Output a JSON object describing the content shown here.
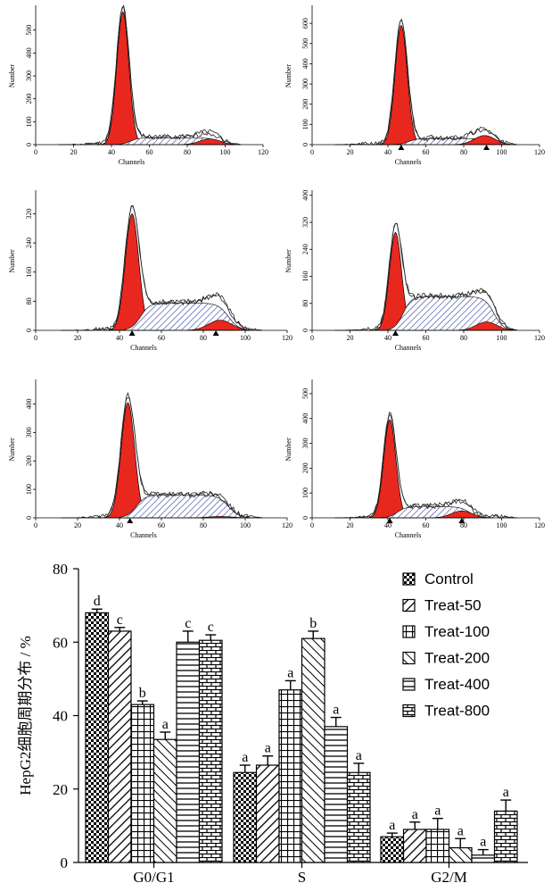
{
  "chart_data": [
    {
      "type": "area",
      "panel": "histogram-1",
      "xlabel": "Channels",
      "ylabel": "Number",
      "xlim": [
        0,
        120
      ],
      "ylim": [
        0,
        600
      ],
      "x_ticks": [
        0,
        20,
        40,
        60,
        80,
        100,
        120
      ],
      "y_ticks": [
        0,
        100,
        200,
        300,
        400,
        500
      ],
      "g1_peak": {
        "x": 46,
        "height": 580
      },
      "g2_peak": {
        "x": 92,
        "height": 25
      },
      "s_level": 30,
      "markers": []
    },
    {
      "type": "area",
      "panel": "histogram-2",
      "xlabel": "Channels",
      "ylabel": "Number",
      "xlim": [
        0,
        120
      ],
      "ylim": [
        0,
        680
      ],
      "x_ticks": [
        0,
        20,
        40,
        60,
        80,
        100,
        120
      ],
      "y_ticks": [
        0,
        100,
        200,
        300,
        400,
        500,
        600
      ],
      "g1_peak": {
        "x": 47,
        "height": 590
      },
      "g2_peak": {
        "x": 91,
        "height": 45
      },
      "s_level": 30,
      "markers": [
        47,
        92
      ]
    },
    {
      "type": "area",
      "panel": "histogram-3",
      "xlabel": "Channels",
      "ylabel": "Number",
      "xlim": [
        0,
        120
      ],
      "ylim": [
        0,
        380
      ],
      "x_ticks": [
        0,
        20,
        40,
        60,
        80,
        100,
        120
      ],
      "y_ticks": [
        0,
        80,
        160,
        240,
        320
      ],
      "g1_peak": {
        "x": 46,
        "height": 320
      },
      "g2_peak": {
        "x": 88,
        "height": 28
      },
      "s_level": 75,
      "markers": [
        46,
        86
      ]
    },
    {
      "type": "area",
      "panel": "histogram-4",
      "xlabel": "Channels",
      "ylabel": "Number",
      "xlim": [
        0,
        120
      ],
      "ylim": [
        0,
        410
      ],
      "x_ticks": [
        0,
        20,
        40,
        60,
        80,
        100,
        120
      ],
      "y_ticks": [
        0,
        80,
        160,
        240,
        320,
        400
      ],
      "g1_peak": {
        "x": 44,
        "height": 290
      },
      "g2_peak": {
        "x": 92,
        "height": 25
      },
      "s_level": 100,
      "markers": [
        44
      ]
    },
    {
      "type": "area",
      "panel": "histogram-5",
      "xlabel": "Channels",
      "ylabel": "Number",
      "xlim": [
        0,
        120
      ],
      "ylim": [
        0,
        480
      ],
      "x_ticks": [
        0,
        20,
        40,
        60,
        80,
        100,
        120
      ],
      "y_ticks": [
        0,
        100,
        200,
        300,
        400
      ],
      "g1_peak": {
        "x": 44,
        "height": 405
      },
      "g2_peak": {
        "x": 88,
        "height": 5
      },
      "s_level": 80,
      "markers": [
        45
      ]
    },
    {
      "type": "area",
      "panel": "histogram-6",
      "xlabel": "Channels",
      "ylabel": "Number",
      "xlim": [
        0,
        120
      ],
      "ylim": [
        0,
        550
      ],
      "x_ticks": [
        0,
        20,
        40,
        60,
        80,
        100,
        120
      ],
      "y_ticks": [
        0,
        100,
        200,
        300,
        400,
        500
      ],
      "g1_peak": {
        "x": 41,
        "height": 395
      },
      "g2_peak": {
        "x": 79,
        "height": 28
      },
      "s_level": 45,
      "markers": [
        41,
        79
      ]
    },
    {
      "type": "bar",
      "panel": "cell-cycle-distribution",
      "ylabel": "HepG2细胞周期分布 / %",
      "ylim": [
        0,
        80
      ],
      "y_ticks": [
        0,
        20,
        40,
        60,
        80
      ],
      "categories": [
        "G0/G1",
        "S",
        "G2/M"
      ],
      "series": [
        {
          "name": "Control",
          "values": [
            68,
            24.5,
            7
          ],
          "errors": [
            1,
            2,
            1
          ],
          "letters": [
            "d",
            "a",
            "a"
          ],
          "pattern": "check"
        },
        {
          "name": "Treat-50",
          "values": [
            63,
            26.5,
            9
          ],
          "errors": [
            1,
            2.5,
            2
          ],
          "letters": [
            "c",
            "a",
            "a"
          ],
          "pattern": "diag"
        },
        {
          "name": "Treat-100",
          "values": [
            43,
            47,
            9
          ],
          "errors": [
            1,
            2.5,
            3
          ],
          "letters": [
            "b",
            "a",
            "a"
          ],
          "pattern": "grid"
        },
        {
          "name": "Treat-200",
          "values": [
            33.5,
            61,
            4
          ],
          "errors": [
            2,
            2,
            2.5
          ],
          "letters": [
            "a",
            "b",
            "a"
          ],
          "pattern": "backdiag"
        },
        {
          "name": "Treat-400",
          "values": [
            60,
            37,
            2
          ],
          "errors": [
            3,
            2.5,
            1.5
          ],
          "letters": [
            "c",
            "a",
            "a"
          ],
          "pattern": "hlines"
        },
        {
          "name": "Treat-800",
          "values": [
            60.5,
            24.5,
            14
          ],
          "errors": [
            1.5,
            2.5,
            3
          ],
          "letters": [
            "c",
            "a",
            "a"
          ],
          "pattern": "brick"
        }
      ],
      "legend_position": "top-right"
    }
  ]
}
